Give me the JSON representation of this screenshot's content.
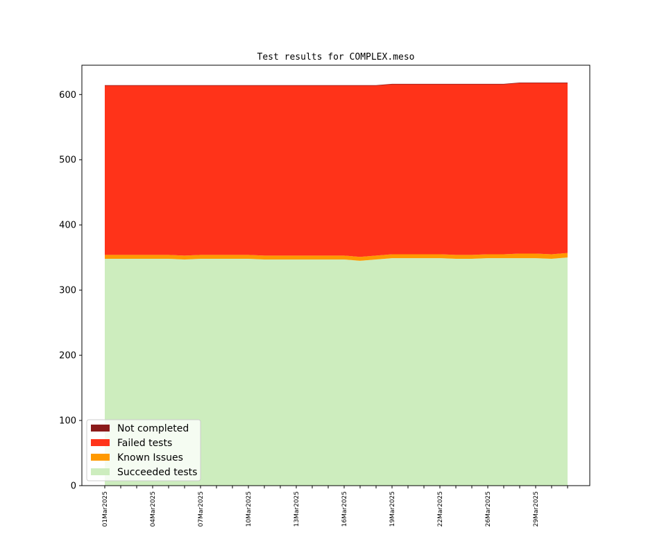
{
  "chart_data": {
    "type": "area",
    "title": "Test results for COMPLEX.meso",
    "xlabel": "",
    "ylabel": "",
    "ylim": [
      0,
      645
    ],
    "yticks": [
      0,
      100,
      200,
      300,
      400,
      500,
      600
    ],
    "x": [
      "01Mar2025",
      "02Mar2025",
      "03Mar2025",
      "04Mar2025",
      "05Mar2025",
      "06Mar2025",
      "07Mar2025",
      "08Mar2025",
      "09Mar2025",
      "10Mar2025",
      "11Mar2025",
      "12Mar2025",
      "13Mar2025",
      "14Mar2025",
      "15Mar2025",
      "16Mar2025",
      "17Mar2025",
      "18Mar2025",
      "19Mar2025",
      "20Mar2025",
      "21Mar2025",
      "22Mar2025",
      "23Mar2025",
      "24Mar2025",
      "26Mar2025",
      "27Mar2025",
      "28Mar2025",
      "29Mar2025",
      "30Mar2025",
      "31Mar2025"
    ],
    "xtick_labels": [
      "01Mar2025",
      "04Mar2025",
      "07Mar2025",
      "10Mar2025",
      "13Mar2025",
      "16Mar2025",
      "19Mar2025",
      "22Mar2025",
      "26Mar2025",
      "29Mar2025"
    ],
    "grid": false,
    "legend_position": "lower-left",
    "series": [
      {
        "name": "Succeeded tests",
        "color": "#cdedbe",
        "values": [
          348,
          348,
          348,
          348,
          348,
          347,
          348,
          348,
          348,
          348,
          347,
          347,
          347,
          347,
          347,
          347,
          345,
          347,
          349,
          349,
          349,
          349,
          348,
          348,
          349,
          349,
          349,
          349,
          348,
          350
        ]
      },
      {
        "name": "Known Issues",
        "color": "#ff9900",
        "values": [
          6,
          6,
          6,
          6,
          6,
          6,
          6,
          6,
          6,
          6,
          6,
          6,
          6,
          6,
          6,
          6,
          6,
          6,
          6,
          6,
          6,
          6,
          6,
          6,
          6,
          6,
          7,
          7,
          7,
          7
        ]
      },
      {
        "name": "Failed tests",
        "color": "#ff3319",
        "values": [
          260,
          260,
          260,
          260,
          260,
          261,
          260,
          260,
          260,
          260,
          261,
          261,
          261,
          261,
          261,
          261,
          263,
          261,
          261,
          261,
          261,
          261,
          262,
          262,
          261,
          261,
          262,
          262,
          263,
          261
        ]
      },
      {
        "name": "Not completed",
        "color": "#8b1a1a",
        "values": [
          0,
          0,
          0,
          0,
          0,
          0,
          0,
          0,
          0,
          0,
          0,
          0,
          0,
          0,
          0,
          0,
          0,
          0,
          0,
          0,
          0,
          0,
          0,
          0,
          0,
          0,
          0,
          0,
          0,
          0
        ]
      }
    ]
  }
}
